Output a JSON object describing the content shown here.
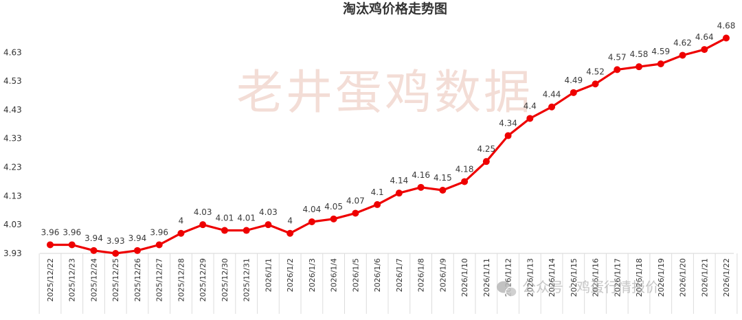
{
  "chart_data": {
    "type": "line",
    "title": "淘汰鸡价格走势图",
    "xlabel": "",
    "ylabel": "",
    "ylim": [
      3.93,
      4.7
    ],
    "yticks": [
      3.93,
      4.03,
      4.13,
      4.23,
      4.33,
      4.43,
      4.53,
      4.63
    ],
    "ytick_labels": [
      "3.93",
      "4.03",
      "4.13",
      "4.23",
      "4.33",
      "4.43",
      "4.53",
      "4.63"
    ],
    "grid": false,
    "legend": "none",
    "color": "#ee0000",
    "x": [
      "2025/12/22",
      "2025/12/23",
      "2025/12/24",
      "2025/12/25",
      "2025/12/26",
      "2025/12/27",
      "2025/12/28",
      "2025/12/29",
      "2025/12/30",
      "2025/12/31",
      "2026/1/1",
      "2026/1/2",
      "2026/1/3",
      "2026/1/4",
      "2026/1/5",
      "2026/1/6",
      "2026/1/7",
      "2026/1/8",
      "2026/1/9",
      "2026/1/10",
      "2026/1/11",
      "2026/1/12",
      "2026/1/13",
      "2026/1/14",
      "2026/1/15",
      "2026/1/16",
      "2026/1/17",
      "2026/1/18",
      "2026/1/19",
      "2026/1/20",
      "2026/1/21",
      "2026/1/22"
    ],
    "series": [
      {
        "values": [
          3.96,
          3.96,
          3.94,
          3.93,
          3.94,
          3.96,
          4.0,
          4.03,
          4.01,
          4.01,
          4.03,
          4.0,
          4.04,
          4.05,
          4.07,
          4.1,
          4.14,
          4.16,
          4.15,
          4.18,
          4.25,
          4.34,
          4.4,
          4.44,
          4.49,
          4.52,
          4.57,
          4.58,
          4.59,
          4.62,
          4.64,
          4.68
        ],
        "labels": [
          "3.96",
          "3.96",
          "3.94",
          "3.93",
          "3.94",
          "3.96",
          "4",
          "4.03",
          "4.01",
          "4.01",
          "4.03",
          "4",
          "4.04",
          "4.05",
          "4.07",
          "4.1",
          "4.14",
          "4.16",
          "4.15",
          "4.18",
          "4.25",
          "4.34",
          "4.4",
          "4.44",
          "4.49",
          "4.52",
          "4.57",
          "4.58",
          "4.59",
          "4.62",
          "4.64",
          "4.68"
        ]
      }
    ]
  },
  "watermark": {
    "main": "老井蛋鸡数据",
    "footer": "公众号 · 鸡蛋行情报价",
    "icon": "wechat-icon"
  }
}
